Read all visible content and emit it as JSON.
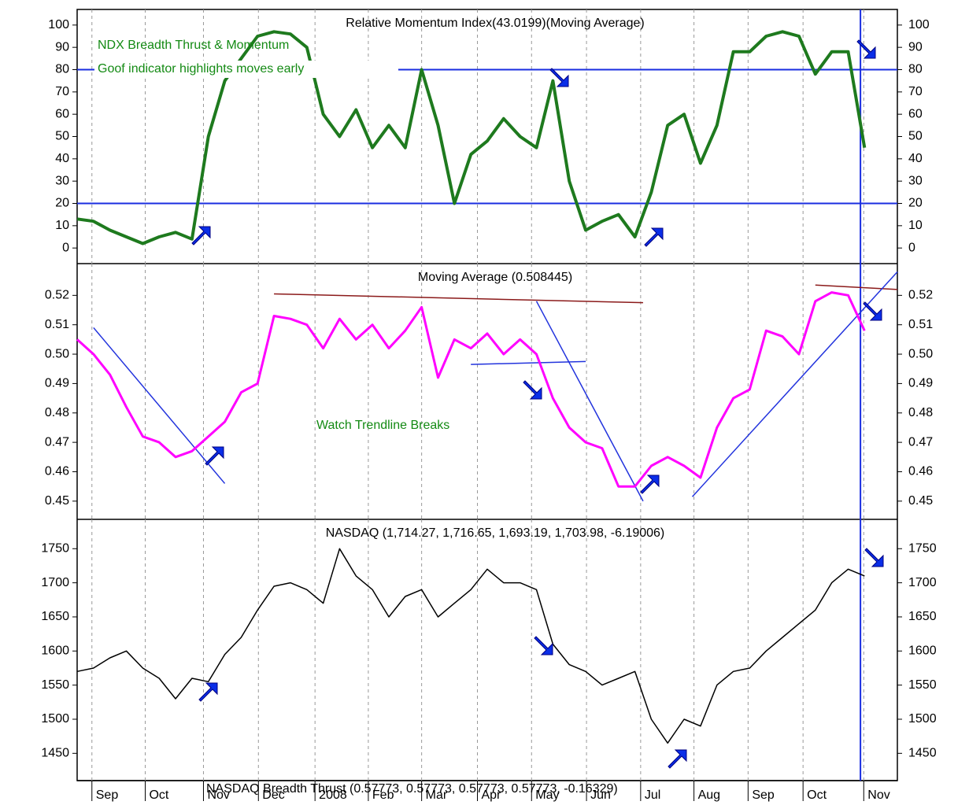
{
  "chart_data": [
    {
      "type": "line",
      "title": "Relative Momentum Index(43.0199)(Moving Average)",
      "annotations": [
        "NDX Breadth Thrust & Momentum",
        "Goof indicator highlights moves early"
      ],
      "xlim": [
        0,
        100
      ],
      "ylim": [
        -7,
        107
      ],
      "yticks": [
        0,
        10,
        20,
        30,
        40,
        50,
        60,
        70,
        80,
        90,
        100
      ],
      "hlines": [
        80,
        20
      ],
      "vline": 95.5,
      "x": [
        0,
        2,
        4,
        6,
        8,
        10,
        12,
        14,
        16,
        18,
        20,
        22,
        24,
        26,
        28,
        30,
        32,
        34,
        36,
        38,
        40,
        42,
        44,
        46,
        48,
        50,
        52,
        54,
        56,
        58,
        60,
        62,
        64,
        66,
        68,
        70,
        72,
        74,
        76,
        78,
        80,
        82,
        84,
        86,
        88,
        90,
        92,
        94,
        96
      ],
      "series": [
        {
          "color": "#1e7a1e",
          "values": [
            13,
            12,
            8,
            5,
            2,
            5,
            7,
            4,
            50,
            75,
            85,
            95,
            97,
            96,
            90,
            60,
            50,
            62,
            45,
            55,
            45,
            80,
            55,
            20,
            42,
            48,
            58,
            50,
            45,
            75,
            30,
            8,
            12,
            15,
            5,
            25,
            55,
            60,
            38,
            55,
            88,
            88,
            95,
            97,
            95,
            78,
            88,
            88,
            45
          ]
        }
      ]
    },
    {
      "type": "line",
      "title": "Moving Average (0.508445)",
      "annotations": [
        "Watch Trendline Breaks"
      ],
      "xlim": [
        0,
        100
      ],
      "ylim": [
        0.4438,
        0.5308
      ],
      "yticks": [
        0.45,
        0.46,
        0.47,
        0.48,
        0.49,
        {
          "value": 0.5,
          "label": "0.50"
        },
        0.51,
        0.52
      ],
      "vline": 95.5,
      "x": [
        0,
        2,
        4,
        6,
        8,
        10,
        12,
        14,
        16,
        18,
        20,
        22,
        24,
        26,
        28,
        30,
        32,
        34,
        36,
        38,
        40,
        42,
        44,
        46,
        48,
        50,
        52,
        54,
        56,
        58,
        60,
        62,
        64,
        66,
        68,
        70,
        72,
        74,
        76,
        78,
        80,
        82,
        84,
        86,
        88,
        90,
        92,
        94,
        96
      ],
      "series": [
        {
          "color": "#ff00ff",
          "values": [
            0.505,
            0.5,
            0.493,
            0.482,
            0.472,
            0.47,
            0.465,
            0.467,
            0.472,
            0.477,
            0.487,
            0.49,
            0.513,
            0.512,
            0.51,
            0.502,
            0.512,
            0.505,
            0.51,
            0.502,
            0.508,
            0.516,
            0.492,
            0.505,
            0.502,
            0.507,
            0.5,
            0.505,
            0.5,
            0.485,
            0.475,
            0.47,
            0.468,
            0.455,
            0.455,
            0.462,
            0.465,
            0.462,
            0.458,
            0.475,
            0.485,
            0.488,
            0.508,
            0.506,
            0.5,
            0.518,
            0.521,
            0.52,
            0.508
          ]
        }
      ],
      "trendlines": [
        {
          "color": "#2233dd",
          "x": [
            2,
            18
          ],
          "y": [
            0.509,
            0.456
          ]
        },
        {
          "color": "#8b1a1a",
          "x": [
            24,
            69
          ],
          "y": [
            0.5205,
            0.5175
          ]
        },
        {
          "color": "#2233dd",
          "x": [
            48,
            62
          ],
          "y": [
            0.4965,
            0.4975
          ]
        },
        {
          "color": "#2233dd",
          "x": [
            56,
            69
          ],
          "y": [
            0.518,
            0.45
          ]
        },
        {
          "color": "#8b1a1a",
          "x": [
            90,
            100
          ],
          "y": [
            0.5235,
            0.522
          ]
        },
        {
          "color": "#2233dd",
          "x": [
            75,
            100
          ],
          "y": [
            0.4515,
            0.528
          ]
        }
      ]
    },
    {
      "type": "line",
      "title": "NASDAQ (1,714.27, 1,716.65, 1,693.19, 1,703.98, -6.19006)",
      "footer": "NASDAQ Breadth Thrust (0.57773, 0.57773, 0.57773, 0.57773, -0.16329)",
      "xlim": [
        0,
        100
      ],
      "ylim": [
        1410,
        1793
      ],
      "yticks": [
        1450,
        1500,
        1550,
        1600,
        1650,
        1700,
        1750
      ],
      "vline": 95.5,
      "xticks": [
        {
          "value": 1.8,
          "label": "Sep"
        },
        {
          "value": 8.3,
          "label": "Oct"
        },
        {
          "value": 15.4,
          "label": "Nov"
        },
        {
          "value": 22.1,
          "label": "Dec"
        },
        {
          "value": 29.0,
          "label": "2008"
        },
        {
          "value": 35.5,
          "label": "Feb"
        },
        {
          "value": 42.0,
          "label": "Mar"
        },
        {
          "value": 48.8,
          "label": "Apr"
        },
        {
          "value": 55.4,
          "label": "May"
        },
        {
          "value": 62.1,
          "label": "Jun"
        },
        {
          "value": 68.7,
          "label": "Jul"
        },
        {
          "value": 75.2,
          "label": "Aug"
        },
        {
          "value": 81.8,
          "label": "Sep"
        },
        {
          "value": 88.5,
          "label": "Oct"
        },
        {
          "value": 95.9,
          "label": "Nov"
        }
      ],
      "x": [
        0,
        2,
        4,
        6,
        8,
        10,
        12,
        14,
        16,
        18,
        20,
        22,
        24,
        26,
        28,
        30,
        32,
        34,
        36,
        38,
        40,
        42,
        44,
        46,
        48,
        50,
        52,
        54,
        56,
        58,
        60,
        62,
        64,
        66,
        68,
        70,
        72,
        74,
        76,
        78,
        80,
        82,
        84,
        86,
        88,
        90,
        92,
        94,
        96
      ],
      "series": [
        {
          "color": "#000000",
          "values": [
            1570,
            1575,
            1590,
            1600,
            1575,
            1560,
            1530,
            1560,
            1555,
            1595,
            1620,
            1660,
            1695,
            1700,
            1690,
            1670,
            1750,
            1710,
            1690,
            1650,
            1680,
            1690,
            1650,
            1670,
            1690,
            1720,
            1700,
            1700,
            1690,
            1610,
            1580,
            1570,
            1550,
            1560,
            1570,
            1500,
            1465,
            1500,
            1490,
            1550,
            1570,
            1575,
            1600,
            1620,
            1640,
            1660,
            1700,
            1720,
            1710
          ]
        }
      ]
    }
  ]
}
